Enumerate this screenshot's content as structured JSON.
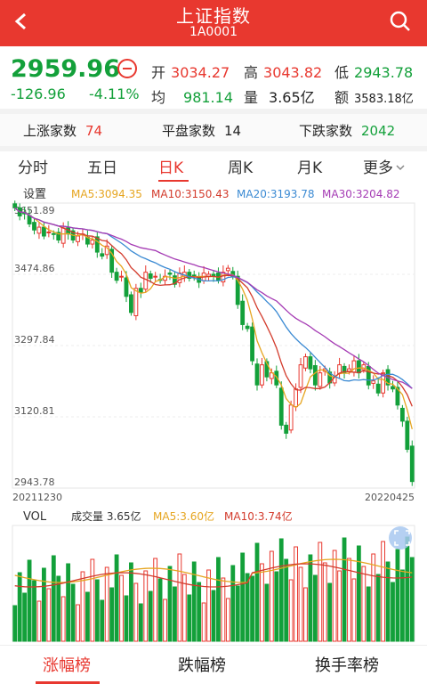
{
  "header": {
    "title": "上证指数",
    "code": "1A0001",
    "back_icon": "chevron-left-icon",
    "search_icon": "search-icon"
  },
  "quote": {
    "price": "2959.96",
    "change": "-126.96",
    "change_pct": "-4.11%",
    "open_label": "开",
    "open": "3034.27",
    "high_label": "高",
    "high": "3043.82",
    "low_label": "低",
    "low": "2943.78",
    "avg_label": "均",
    "avg": "981.14",
    "volume_label": "量",
    "volume": "3.65亿",
    "amount_label": "额",
    "amount": "3583.18亿"
  },
  "stats": {
    "up_label": "上涨家数",
    "up": "74",
    "flat_label": "平盘家数",
    "flat": "14",
    "down_label": "下跌家数",
    "down": "2042"
  },
  "tabs": [
    "分时",
    "五日",
    "日K",
    "周K",
    "月K",
    "更多"
  ],
  "active_tab": "日K",
  "chart_legend": {
    "settings": "设置",
    "ma5": "MA5:3094.35",
    "ma10": "MA10:3150.43",
    "ma20": "MA20:3193.78",
    "ma30": "MA30:3204.82"
  },
  "vol_legend": {
    "vol": "VOL",
    "volume": "成交量 3.65亿",
    "ma5": "MA5:3.60亿",
    "ma10": "MA10:3.74亿"
  },
  "colors": {
    "up": "#e8382f",
    "down": "#13a03a",
    "ma5": "#e6a520",
    "ma10": "#d33b2c",
    "ma20": "#3b8ad3",
    "ma30": "#a53bb4"
  },
  "chart_data": {
    "type": "candlestick",
    "x_start": "20211230",
    "x_end": "20220425",
    "y_ticks": [
      "3651.89",
      "3474.86",
      "3297.84",
      "3120.81",
      "2943.78"
    ],
    "ylim": [
      2943.78,
      3651.89
    ],
    "closes": [
      3640,
      3620,
      3625,
      3600,
      3585,
      3592,
      3570,
      3580,
      3575,
      3560,
      3590,
      3575,
      3560,
      3570,
      3575,
      3550,
      3560,
      3530,
      3520,
      3545,
      3480,
      3460,
      3470,
      3420,
      3380,
      3440,
      3430,
      3480,
      3465,
      3470,
      3460,
      3470,
      3475,
      3450,
      3478,
      3480,
      3465,
      3470,
      3455,
      3478,
      3475,
      3470,
      3460,
      3480,
      3490,
      3470,
      3400,
      3350,
      3340,
      3260,
      3200,
      3250,
      3220,
      3230,
      3200,
      3100,
      3080,
      3150,
      3190,
      3250,
      3270,
      3240,
      3200,
      3230,
      3240,
      3205,
      3220,
      3250,
      3230,
      3240,
      3260,
      3230,
      3250,
      3200,
      3210,
      3180,
      3230,
      3200,
      3190,
      3150,
      3110,
      3040,
      2960
    ]
  },
  "bottom_tabs": [
    "涨幅榜",
    "跌幅榜",
    "换手率榜"
  ],
  "bottom_active": "涨幅榜"
}
